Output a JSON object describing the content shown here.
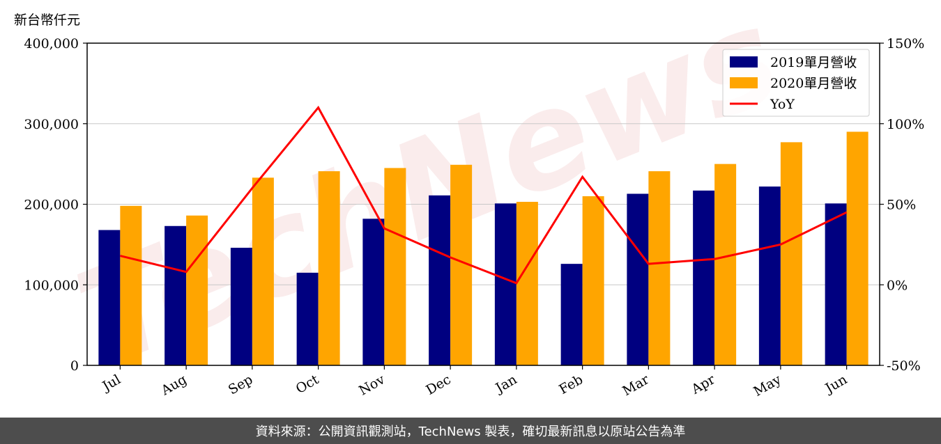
{
  "unit_label": "新台幣仟元",
  "footer": "資料來源：公開資訊觀測站，TechNews 製表，確切最新訊息以原站公告為準",
  "watermark": "TechNews",
  "colors": {
    "bar2019": "#000080",
    "bar2020": "#ffa500",
    "yoy": "#ff0000",
    "grid": "#c8c8c8",
    "footer_bg": "#4d4d4d"
  },
  "chart_data": {
    "type": "bar",
    "categories": [
      "Jul",
      "Aug",
      "Sep",
      "Oct",
      "Nov",
      "Dec",
      "Jan",
      "Feb",
      "Mar",
      "Apr",
      "May",
      "Jun"
    ],
    "series": [
      {
        "name": "2019單月營收",
        "type": "bar",
        "axis": "left",
        "values": [
          168000,
          173000,
          146000,
          115000,
          182000,
          211000,
          201000,
          126000,
          213000,
          217000,
          222000,
          201000
        ]
      },
      {
        "name": "2020單月營收",
        "type": "bar",
        "axis": "left",
        "values": [
          198000,
          186000,
          233000,
          241000,
          245000,
          249000,
          203000,
          210000,
          241000,
          250000,
          277000,
          290000
        ]
      },
      {
        "name": "YoY",
        "type": "line",
        "axis": "right",
        "values": [
          18,
          8,
          60,
          110,
          35,
          17,
          1,
          67,
          13,
          16,
          25,
          45
        ]
      }
    ],
    "y_left": {
      "range": [
        0,
        400000
      ],
      "ticks": [
        0,
        100000,
        200000,
        300000,
        400000
      ],
      "tick_labels": [
        "0",
        "100,000",
        "200,000",
        "300,000",
        "400,000"
      ]
    },
    "y_right": {
      "range": [
        -50,
        150
      ],
      "ticks": [
        -50,
        0,
        50,
        100,
        150
      ],
      "tick_labels": [
        "-50%",
        "0%",
        "50%",
        "100%",
        "150%"
      ]
    },
    "grid": true,
    "legend_position": "top-right"
  }
}
